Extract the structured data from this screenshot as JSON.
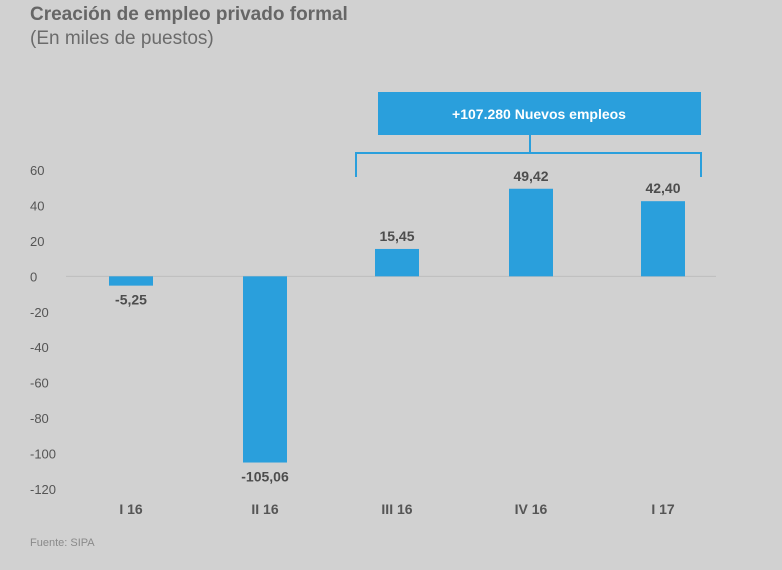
{
  "chart_data": {
    "type": "bar",
    "title": "Creación de empleo privado formal",
    "subtitle": "(En miles de puestos)",
    "categories": [
      "I 16",
      "II 16",
      "III 16",
      "IV 16",
      "I 17"
    ],
    "values": [
      -5.25,
      -105.06,
      15.45,
      49.42,
      42.4
    ],
    "data_labels": [
      "-5,25",
      "-105,06",
      "15,45",
      "49,42",
      "42,40"
    ],
    "ylim": [
      -120,
      60
    ],
    "yticks": [
      60,
      40,
      20,
      0,
      -20,
      -40,
      -60,
      -80,
      -100,
      -120
    ],
    "annotation": "+107.280 Nuevos empleos",
    "source": "Fuente: SIPA",
    "bar_color": "#2a9fdc",
    "grid": false
  }
}
